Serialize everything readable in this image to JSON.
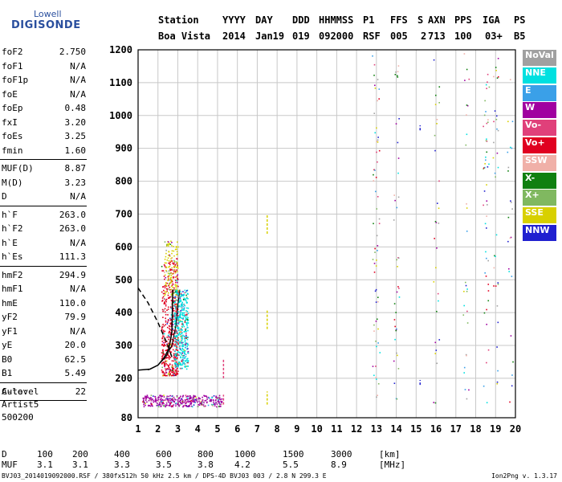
{
  "logo": {
    "line1": "Lowell",
    "line2": "DIGISONDE"
  },
  "header": {
    "row1": [
      "Station",
      "YYYY",
      "DAY",
      "DDD",
      "HHMMSS",
      "P1",
      "FFS",
      "S",
      "AXN",
      "PPS",
      "IGA",
      "PS"
    ],
    "row2": [
      "Boa Vista",
      "2014",
      "Jan19",
      "019",
      "092000",
      "RSF",
      "005",
      "2",
      "713",
      "100",
      "03+",
      "B5"
    ]
  },
  "params": {
    "group1": [
      {
        "name": "foF2",
        "value": "2.750"
      },
      {
        "name": "foF1",
        "value": "N/A"
      },
      {
        "name": "foF1p",
        "value": "N/A"
      },
      {
        "name": "foE",
        "value": "N/A"
      },
      {
        "name": "foEp",
        "value": "0.48"
      },
      {
        "name": "fxI",
        "value": "3.20"
      },
      {
        "name": "foEs",
        "value": "3.25"
      },
      {
        "name": "fmin",
        "value": "1.60"
      }
    ],
    "group2": [
      {
        "name": "MUF(D)",
        "value": "8.87"
      },
      {
        "name": "M(D)",
        "value": "3.23"
      },
      {
        "name": "D",
        "value": "N/A"
      }
    ],
    "group3": [
      {
        "name": "h`F",
        "value": "263.0"
      },
      {
        "name": "h`F2",
        "value": "263.0"
      },
      {
        "name": "h`E",
        "value": "N/A"
      },
      {
        "name": "h`Es",
        "value": "111.3"
      }
    ],
    "group4": [
      {
        "name": "hmF2",
        "value": "294.9"
      },
      {
        "name": "hmF1",
        "value": "N/A"
      },
      {
        "name": "hmE",
        "value": "110.0"
      },
      {
        "name": "yF2",
        "value": "79.9"
      },
      {
        "name": "yF1",
        "value": "N/A"
      },
      {
        "name": "yE",
        "value": "20.0"
      },
      {
        "name": "B0",
        "value": "62.5"
      },
      {
        "name": "B1",
        "value": "5.49"
      }
    ],
    "group5": [
      {
        "name": "C-level",
        "value": "22"
      }
    ]
  },
  "auto": {
    "line1": "Auto:",
    "line2": "Artist5",
    "line3": "500200"
  },
  "legend": [
    {
      "label": "NoVal",
      "color": "#a0a0a0"
    },
    {
      "label": "NNE",
      "color": "#00e0e0"
    },
    {
      "label": "E",
      "color": "#3aa0e8"
    },
    {
      "label": "W",
      "color": "#a000a0"
    },
    {
      "label": "Vo-",
      "color": "#e0407a"
    },
    {
      "label": "Vo+",
      "color": "#e00020"
    },
    {
      "label": "SSW",
      "color": "#f0b0a8"
    },
    {
      "label": "X-",
      "color": "#108010"
    },
    {
      "label": "X+",
      "color": "#80b860"
    },
    {
      "label": "SSE",
      "color": "#d8d000"
    },
    {
      "label": "NNW",
      "color": "#2020d0"
    }
  ],
  "chart_data": {
    "type": "scatter",
    "title": "",
    "xlabel": "",
    "ylabel": "",
    "xlim": [
      1,
      20
    ],
    "ylim": [
      80,
      1200
    ],
    "x_ticks": [
      1,
      2,
      3,
      4,
      5,
      6,
      7,
      8,
      9,
      10,
      11,
      12,
      13,
      14,
      15,
      16,
      17,
      18,
      19,
      20
    ],
    "y_ticks": [
      200,
      300,
      400,
      500,
      600,
      700,
      800,
      900,
      1000,
      1100,
      1200
    ],
    "y_tick_80": 80,
    "grid": true,
    "clusters": [
      {
        "name": "F-trace o",
        "color": "#e00020",
        "x": [
          1.8,
          3.0
        ],
        "y": [
          210,
          560
        ]
      },
      {
        "name": "F-trace x",
        "color": "#00e0e0",
        "x": [
          2.8,
          3.5
        ],
        "y": [
          230,
          470
        ]
      },
      {
        "name": "Es",
        "color": "#a000a0",
        "x": [
          1.2,
          5.2
        ],
        "y": [
          115,
          150
        ]
      },
      {
        "name": "SSE",
        "color": "#d8d000",
        "x": [
          2.3,
          3.0
        ],
        "y": [
          450,
          620
        ]
      },
      {
        "name": "scatter-high",
        "color": "#108010",
        "x": [
          12.5,
          19.8
        ],
        "y": [
          120,
          1190
        ]
      }
    ],
    "profile_curve": {
      "x": [
        1.0,
        1.6,
        2.0,
        2.3,
        2.55,
        2.7,
        2.75
      ],
      "y": [
        225,
        228,
        240,
        262,
        290,
        340,
        470
      ]
    },
    "dashed_line": {
      "x": [
        1.0,
        1.5,
        2.0,
        2.5,
        2.7
      ],
      "y": [
        475,
        430,
        370,
        300,
        265
      ]
    },
    "extra_curve": {
      "x": [
        1.5,
        2.0,
        2.4,
        2.7,
        2.9,
        3.0,
        3.1
      ],
      "y": [
        225,
        240,
        265,
        300,
        360,
        420,
        470
      ]
    }
  },
  "dtable": {
    "row1": [
      "D",
      "100",
      "200",
      "400",
      "600",
      "800",
      "1000",
      "1500",
      "3000",
      "[km]"
    ],
    "row2": [
      "MUF",
      "3.1",
      "3.1",
      "3.3",
      "3.5",
      "3.8",
      "4.2",
      "5.5",
      "8.9",
      "[MHz]"
    ]
  },
  "footer": "BVJ03_2014019092000.RSF / 380fx512h 50 kHz 2.5 km / DPS-4D BVJ03 003 / 2.8 N 299.3 E",
  "version": "Ion2Png v. 1.3.17"
}
